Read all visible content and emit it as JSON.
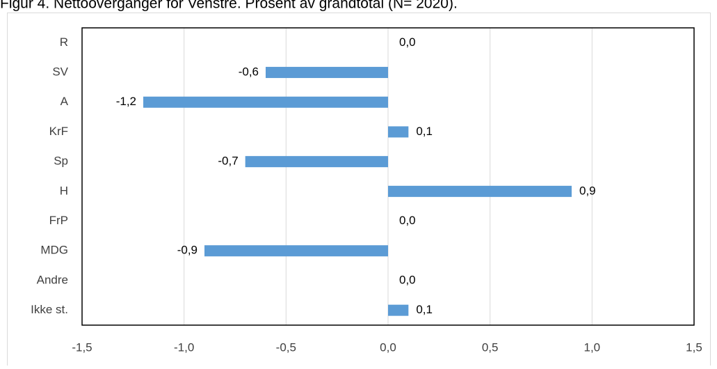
{
  "chart_data": {
    "type": "bar",
    "orientation": "horizontal",
    "title": "Figur 4. Nettooverganger for Venstre. Prosent av grandtotal (N= 2020).",
    "categories": [
      "R",
      "SV",
      "A",
      "KrF",
      "Sp",
      "H",
      "FrP",
      "MDG",
      "Andre",
      "Ikke st."
    ],
    "values": [
      0.0,
      -0.6,
      -1.2,
      0.1,
      -0.7,
      0.9,
      0.0,
      -0.9,
      0.0,
      0.1
    ],
    "value_labels": [
      "0,0",
      "-0,6",
      "-1,2",
      "0,1",
      "-0,7",
      "0,9",
      "0,0",
      "-0,9",
      "0,0",
      "0,1"
    ],
    "color": "#5b9bd5",
    "xlim": [
      -1.5,
      1.5
    ],
    "xticks": [
      {
        "value": -1.5,
        "label": "-1,5"
      },
      {
        "value": -1.0,
        "label": "-1,0"
      },
      {
        "value": -0.5,
        "label": "-0,5"
      },
      {
        "value": 0.0,
        "label": "0,0"
      },
      {
        "value": 0.5,
        "label": "0,5"
      },
      {
        "value": 1.0,
        "label": "1,0"
      },
      {
        "value": 1.5,
        "label": "1,5"
      }
    ],
    "grid": true
  }
}
